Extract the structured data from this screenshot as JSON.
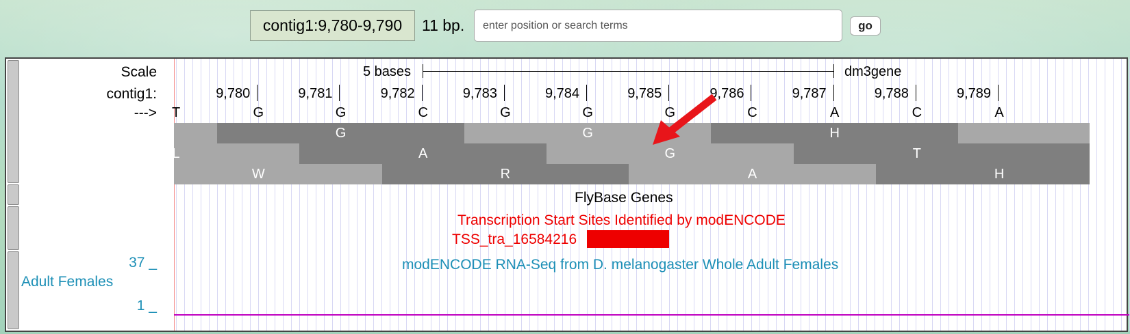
{
  "nav": {
    "position": "contig1:9,780-9,790",
    "bp": "11 bp.",
    "search_placeholder": "enter position or search terms",
    "go_label": "go"
  },
  "labels": {
    "scale": "Scale",
    "contig": "contig1:",
    "strand": "--->",
    "rnaseq_max": "37 _",
    "rnaseq_name": "Adult Females",
    "rnaseq_min": "1 _"
  },
  "scale_bar": {
    "length_label": "5 bases",
    "assembly": "dm3gene"
  },
  "ruler": [
    "9,780",
    "9,781",
    "9,782",
    "9,783",
    "9,784",
    "9,785",
    "9,786",
    "9,787",
    "9,788",
    "9,789"
  ],
  "bases": [
    "T",
    "G",
    "G",
    "C",
    "G",
    "G",
    "G",
    "C",
    "A",
    "C",
    "A"
  ],
  "translation": {
    "frame1": [
      "G",
      "G",
      "H"
    ],
    "frame2": [
      "L",
      "A",
      "G",
      "T"
    ],
    "frame3": [
      "W",
      "R",
      "A",
      "H"
    ]
  },
  "tracks": {
    "flybase": "FlyBase Genes",
    "tss_title": "Transcription Start Sites Identified by modENCODE",
    "tss_item": "TSS_tra_16584216",
    "rnaseq_title": "modENCODE RNA-Seq from D. melanogaster Whole Adult Females"
  },
  "colors": {
    "tss": "#ee0000",
    "rnaseq": "#1c8fb6",
    "aa_dark": "#7f7f7f",
    "aa_light": "#a8a8a8",
    "signal": "#c000c0"
  },
  "icons": {
    "annotation_arrow": "red-arrow-icon"
  }
}
